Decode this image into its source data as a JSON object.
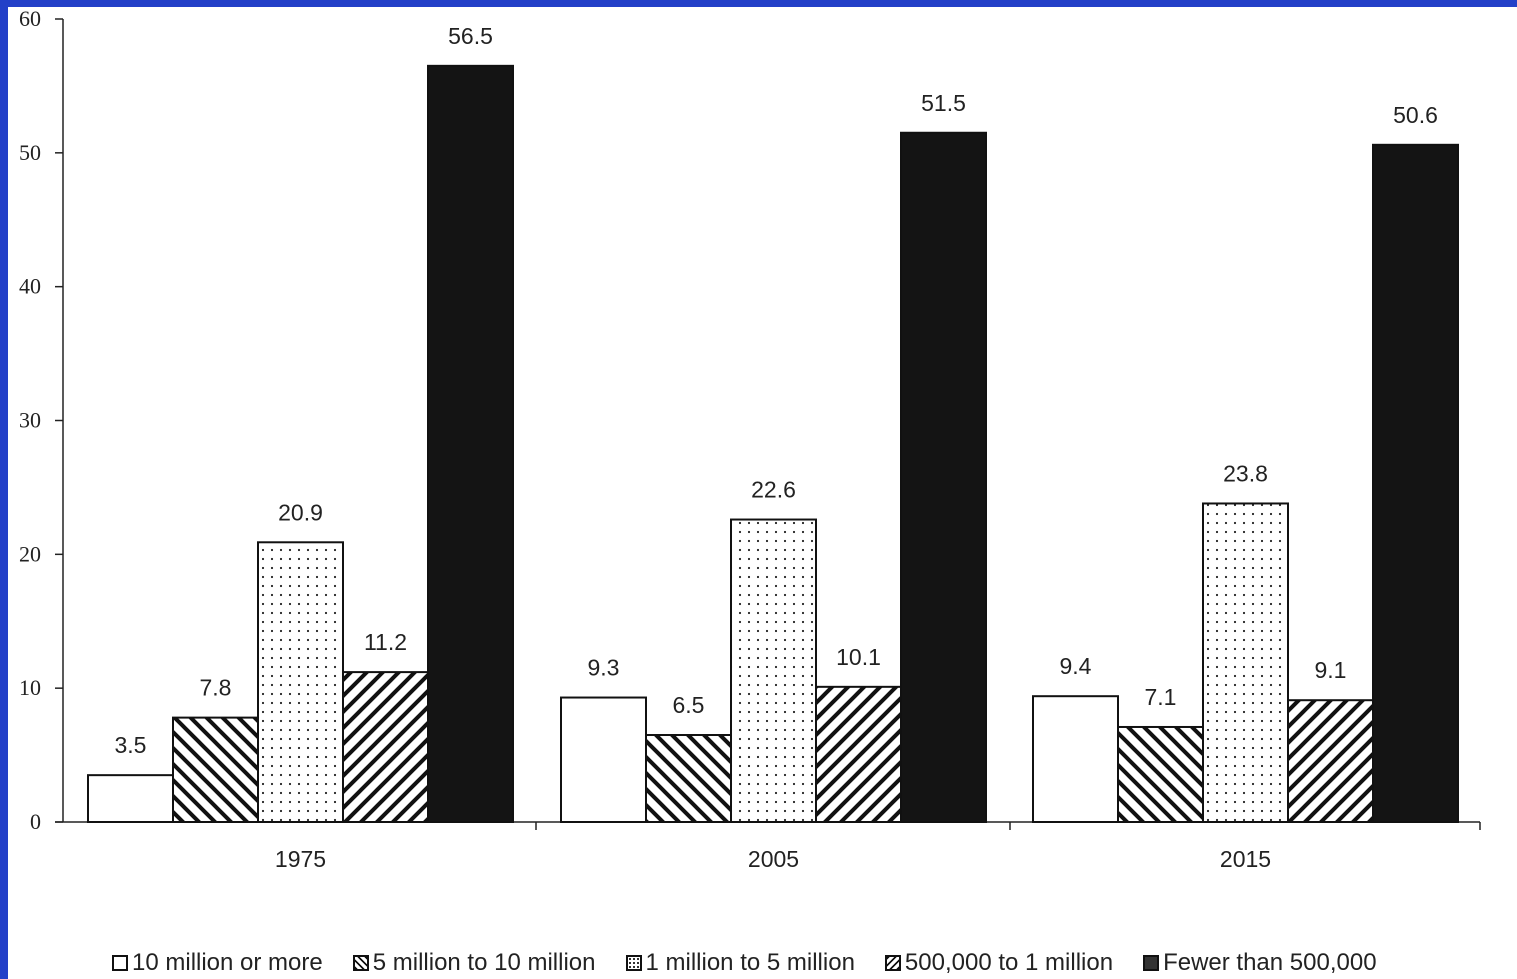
{
  "chart_data": {
    "type": "bar",
    "title": "",
    "xlabel": "",
    "ylabel": "",
    "categories": [
      "1975",
      "2005",
      "2015"
    ],
    "ylim": [
      0,
      60
    ],
    "yticks": [
      "0",
      "10",
      "20",
      "30",
      "40",
      "50",
      "60"
    ],
    "grid": false,
    "legend_position": "bottom",
    "series": [
      {
        "name": "10 million or more",
        "values": [
          3.5,
          9.3,
          9.4
        ],
        "labels": [
          "3.5",
          "9.3",
          "9.4"
        ],
        "pattern": "white"
      },
      {
        "name": "5 million to 10 million",
        "values": [
          7.8,
          6.5,
          7.1
        ],
        "labels": [
          "7.8",
          "6.5",
          "7.1"
        ],
        "pattern": "backslash-hatch"
      },
      {
        "name": "1 million to 5 million",
        "values": [
          20.9,
          22.6,
          23.8
        ],
        "labels": [
          "20.9",
          "22.6",
          "23.8"
        ],
        "pattern": "dotted"
      },
      {
        "name": "500,000 to 1 million",
        "values": [
          11.2,
          10.1,
          9.1
        ],
        "labels": [
          "11.2",
          "10.1",
          "9.1"
        ],
        "pattern": "slash-hatch"
      },
      {
        "name": "Fewer than 500,000",
        "values": [
          56.5,
          51.5,
          50.6
        ],
        "labels": [
          "56.5",
          "51.5",
          "50.6"
        ],
        "pattern": "black"
      }
    ]
  },
  "colors": {
    "frame_border": "#2340c8",
    "bar_black": "#141414",
    "ink": "#222222"
  }
}
